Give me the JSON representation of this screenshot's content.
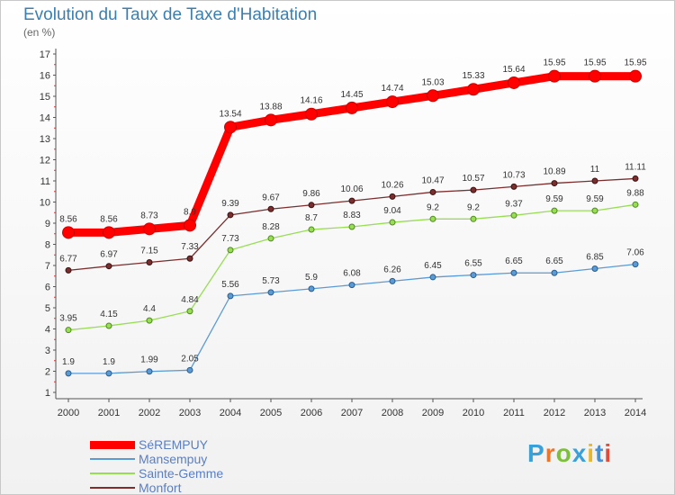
{
  "title": "Evolution du Taux de Taxe d'Habitation",
  "unit_label": "(en %)",
  "brand": "Proxiti",
  "chart_data": {
    "type": "line",
    "title": "Evolution du Taux de Taxe d'Habitation",
    "ylabel": "(en %)",
    "xlabel": "",
    "ylim": [
      1,
      17
    ],
    "yticks": [
      1,
      2,
      3,
      4,
      5,
      6,
      7,
      8,
      9,
      10,
      11,
      12,
      13,
      14,
      15,
      16,
      17
    ],
    "grid": false,
    "legend_position": "bottom-left",
    "x": [
      "2000",
      "2001",
      "2002",
      "2003",
      "2004",
      "2005",
      "2006",
      "2007",
      "2008",
      "2009",
      "2010",
      "2011",
      "2012",
      "2013",
      "2014"
    ],
    "series": [
      {
        "name": "SéREMPUY",
        "color": "#ff0000",
        "values": [
          8.56,
          8.56,
          8.73,
          8.9,
          13.54,
          13.88,
          14.16,
          14.45,
          14.74,
          15.03,
          15.33,
          15.64,
          15.95,
          15.95,
          15.95
        ],
        "labels": [
          "8.56",
          "8.56",
          "8.73",
          "8.9",
          "13.54",
          "13.88",
          "14.16",
          "14.45",
          "14.74",
          "15.03",
          "15.33",
          "15.64",
          "15.95",
          "15.95",
          "15.95"
        ]
      },
      {
        "name": "Mansempuy",
        "color": "#5b9bd5",
        "values": [
          1.9,
          1.9,
          1.99,
          2.05,
          5.56,
          5.73,
          5.9,
          6.08,
          6.26,
          6.45,
          6.55,
          6.65,
          6.65,
          6.85,
          7.06
        ],
        "labels": [
          "1.9",
          "1.9",
          "1.99",
          "2.05",
          "5.56",
          "5.73",
          "5.9",
          "6.08",
          "6.26",
          "6.45",
          "6.55",
          "6.65",
          "6.65",
          "6.85",
          "7.06"
        ]
      },
      {
        "name": "Sainte-Gemme",
        "color": "#99dd55",
        "values": [
          3.95,
          4.15,
          4.4,
          4.84,
          7.73,
          8.28,
          8.7,
          8.83,
          9.04,
          9.2,
          9.2,
          9.37,
          9.59,
          9.59,
          9.88
        ],
        "labels": [
          "3.95",
          "4.15",
          "4.4",
          "4.84",
          "7.73",
          "8.28",
          "8.7",
          "8.83",
          "9.04",
          "9.2",
          "9.2",
          "9.37",
          "9.59",
          "9.59",
          "9.88"
        ]
      },
      {
        "name": "Monfort",
        "color": "#7a2e2e",
        "values": [
          6.77,
          6.97,
          7.15,
          7.33,
          9.39,
          9.67,
          9.86,
          10.06,
          10.26,
          10.47,
          10.57,
          10.73,
          10.89,
          11,
          11.11
        ],
        "labels": [
          "6.77",
          "6.97",
          "7.15",
          "7.33",
          "9.39",
          "9.67",
          "9.86",
          "10.06",
          "10.26",
          "10.47",
          "10.57",
          "10.73",
          "10.89",
          "11",
          "11.11"
        ]
      }
    ]
  }
}
